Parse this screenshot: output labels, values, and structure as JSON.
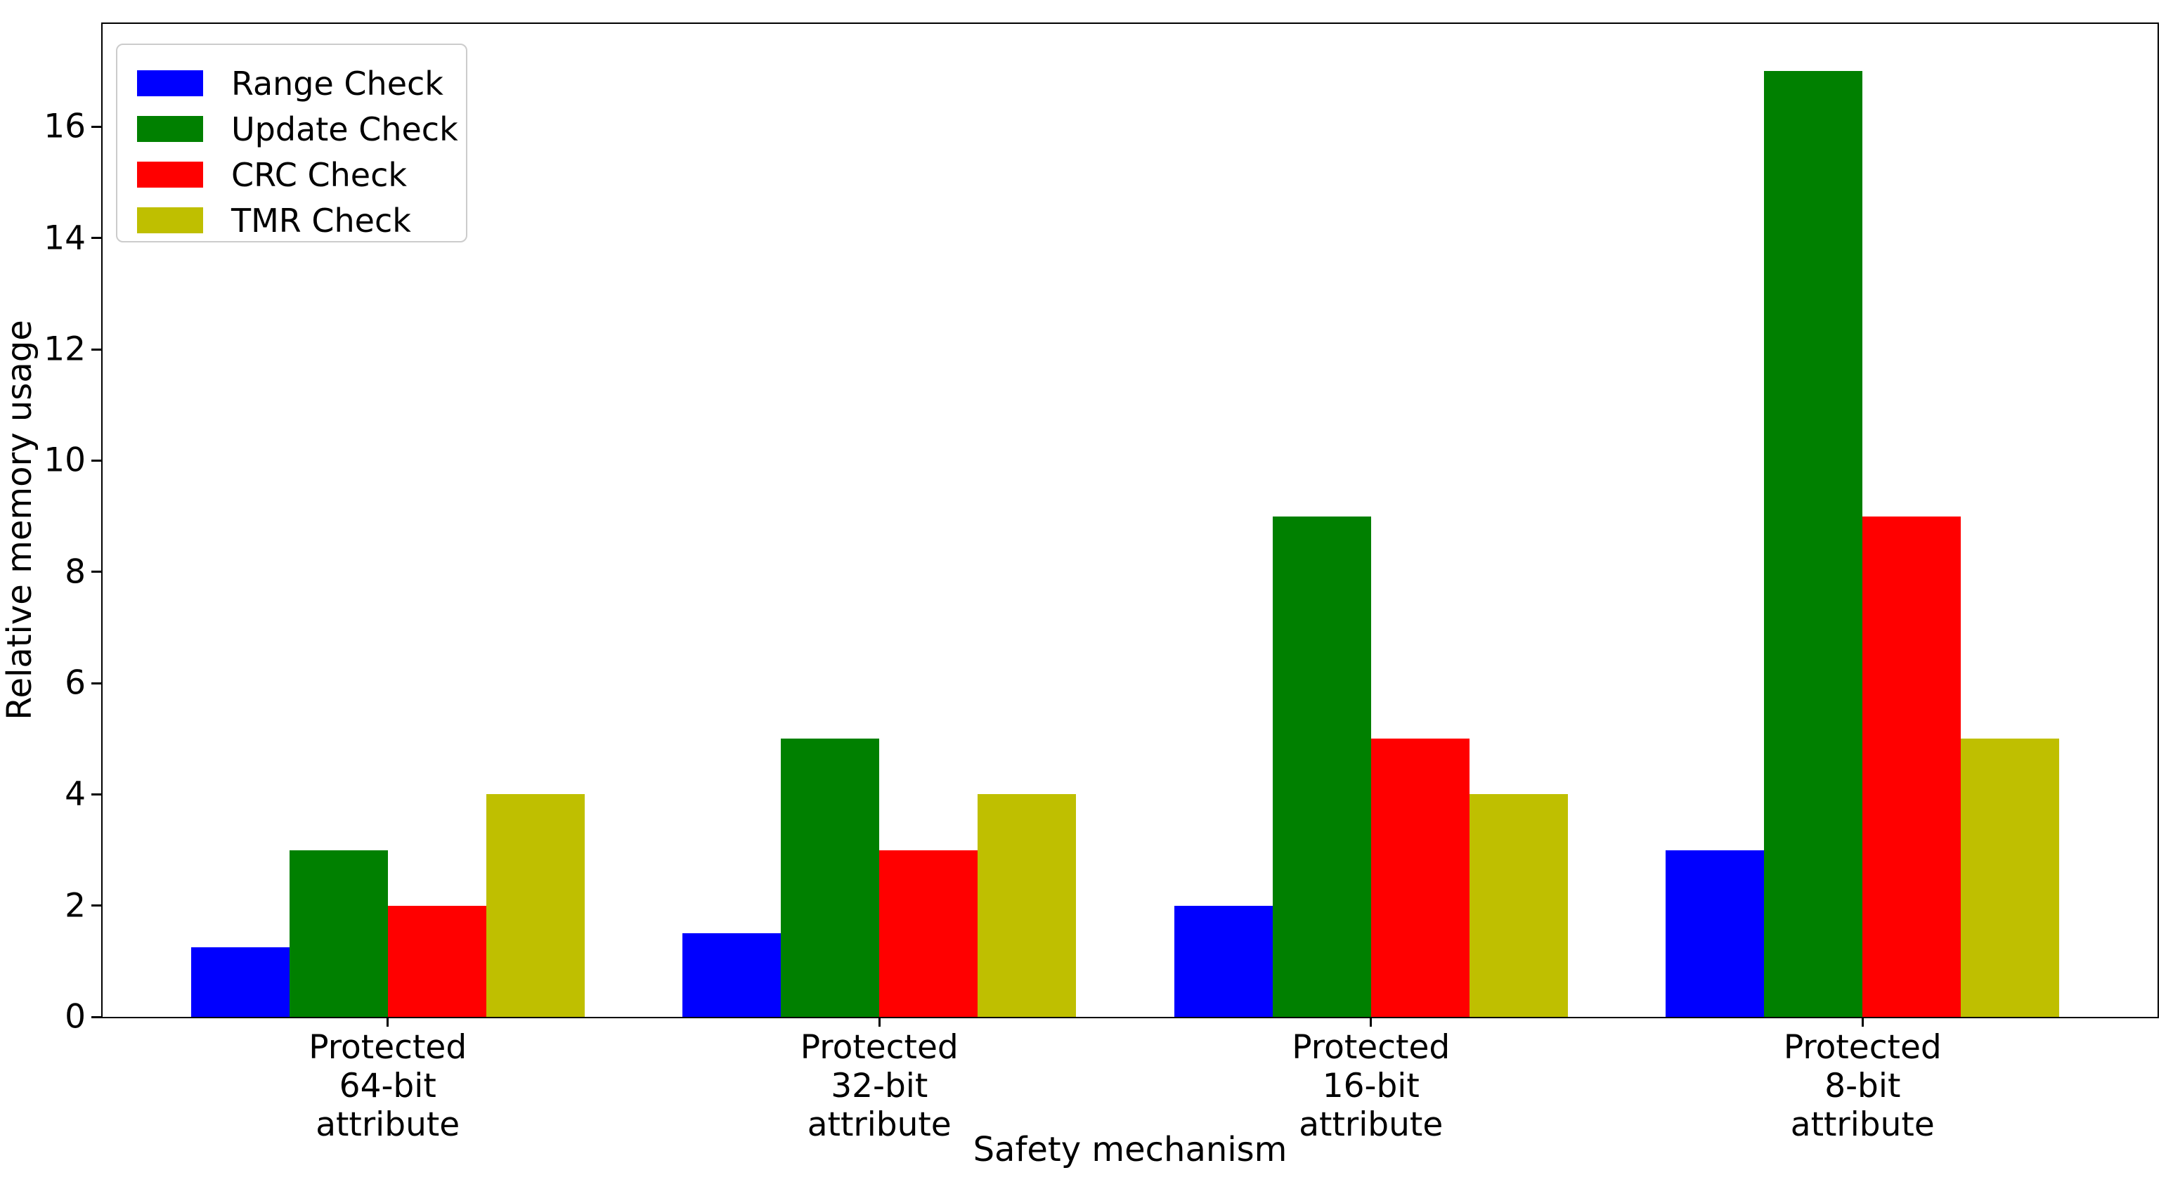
{
  "chart_data": {
    "type": "bar",
    "title": "",
    "xlabel": "Safety mechanism",
    "ylabel": "Relative memory usage",
    "categories": [
      [
        "Protected",
        "64-bit",
        "attribute"
      ],
      [
        "Protected",
        "32-bit",
        "attribute"
      ],
      [
        "Protected",
        "16-bit",
        "attribute"
      ],
      [
        "Protected",
        "8-bit",
        "attribute"
      ]
    ],
    "series": [
      {
        "name": "Range Check",
        "color": "#0000ff",
        "values": [
          1.25,
          1.5,
          2,
          3
        ]
      },
      {
        "name": "Update Check",
        "color": "#008000",
        "values": [
          3,
          5,
          9,
          17
        ]
      },
      {
        "name": "CRC Check",
        "color": "#ff0000",
        "values": [
          2,
          3,
          5,
          9
        ]
      },
      {
        "name": "TMR Check",
        "color": "#bfbf00",
        "values": [
          4,
          4,
          4,
          5
        ]
      }
    ],
    "yticks": [
      0,
      2,
      4,
      6,
      8,
      10,
      12,
      14,
      16
    ],
    "ylim": [
      0,
      17.85
    ],
    "xlim": [
      -0.58,
      3.6
    ],
    "bar_width": 0.2,
    "grid": false,
    "legend_position": "upper left",
    "axis_color": "#000000",
    "background_color": "#ffffff",
    "legend_border_color": "#cccccc"
  }
}
